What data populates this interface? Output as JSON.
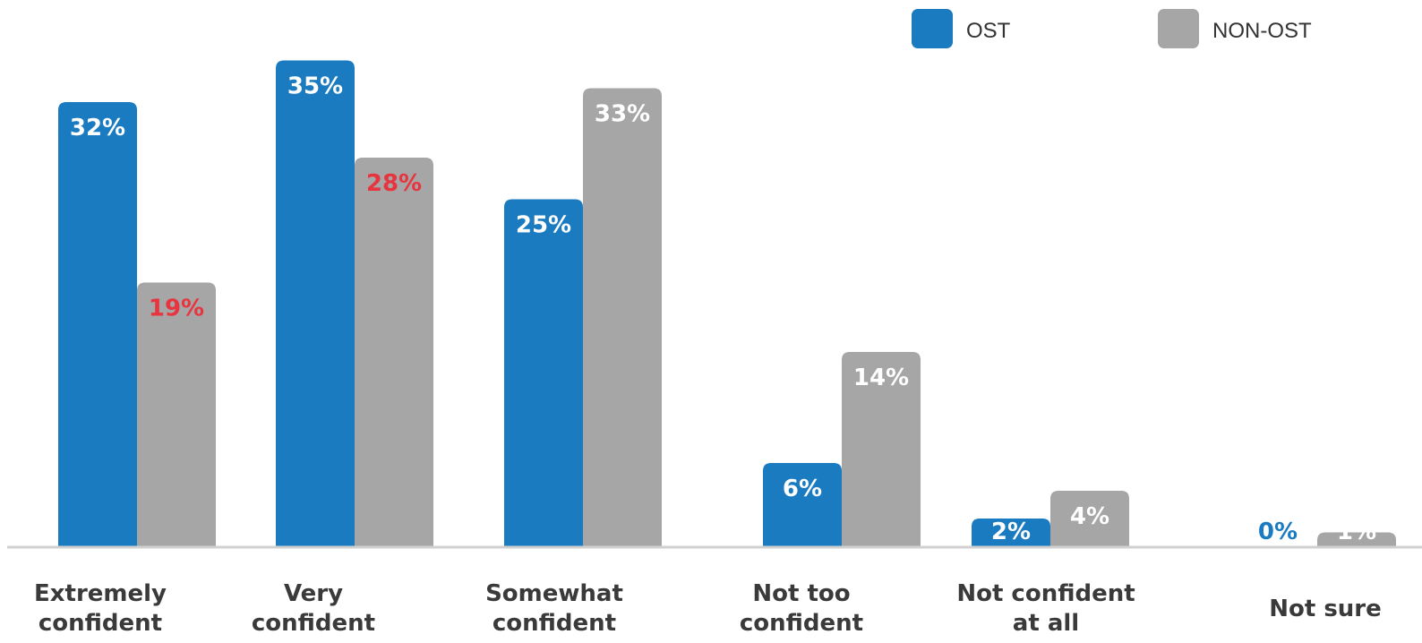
{
  "chart_data": {
    "type": "bar",
    "categories": [
      [
        "Extremely",
        "confident"
      ],
      [
        "Very",
        "confident"
      ],
      [
        "Somewhat",
        "confident"
      ],
      [
        "Not too",
        "confident"
      ],
      [
        "Not confident",
        "at all"
      ],
      [
        "Not sure"
      ]
    ],
    "series": [
      {
        "name": "OST",
        "color": "#1a7bc1",
        "values": [
          32,
          35,
          25,
          6,
          2,
          0
        ],
        "labels": [
          "32%",
          "35%",
          "25%",
          "6%",
          "2%",
          "0%"
        ],
        "label_colors": [
          "#ffffff",
          "#ffffff",
          "#ffffff",
          "#ffffff",
          "#ffffff",
          "#1a7bc1"
        ]
      },
      {
        "name": "NON-OST",
        "color": "#a6a6a6",
        "values": [
          19,
          28,
          33,
          14,
          4,
          1
        ],
        "labels": [
          "19%",
          "28%",
          "33%",
          "14%",
          "4%",
          "1%"
        ],
        "label_colors": [
          "#e8343f",
          "#e8343f",
          "#ffffff",
          "#ffffff",
          "#ffffff",
          "#ffffff"
        ]
      }
    ],
    "ylim": [
      0,
      35
    ],
    "legend": {
      "position": "top-right",
      "items": [
        {
          "label": "OST",
          "color": "#1a7bc1"
        },
        {
          "label": "NON-OST",
          "color": "#a6a6a6"
        }
      ]
    },
    "grid": false,
    "baseline_color": "#d0d0d0"
  }
}
